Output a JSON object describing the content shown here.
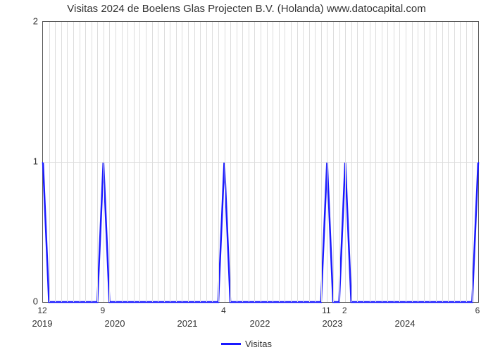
{
  "chart": {
    "type": "line",
    "title": "Visitas 2024 de Boelens Glas Projecten B.V. (Holanda) www.datocapital.com",
    "title_fontsize": 15,
    "background_color": "#ffffff",
    "plot_border_color": "#555555",
    "grid_color": "#dddddd",
    "line_color": "#1a1aff",
    "line_width": 2.5,
    "x_domain_min": 0,
    "x_domain_max": 72,
    "ylim_min": 0,
    "ylim_max": 2,
    "yticks": [
      0,
      1,
      2
    ],
    "x_major_ticks": [
      {
        "x": 0,
        "label": "2019"
      },
      {
        "x": 12,
        "label": "2020"
      },
      {
        "x": 24,
        "label": "2021"
      },
      {
        "x": 36,
        "label": "2022"
      },
      {
        "x": 48,
        "label": "2023"
      },
      {
        "x": 60,
        "label": "2024"
      }
    ],
    "x_minor_step": 1,
    "peaks": [
      {
        "x": 0,
        "label": "12"
      },
      {
        "x": 10,
        "label": "9"
      },
      {
        "x": 30,
        "label": "4"
      },
      {
        "x": 47,
        "label": "11"
      },
      {
        "x": 50,
        "label": "2"
      },
      {
        "x": 72,
        "label": "6"
      }
    ],
    "series": [
      {
        "x": 0,
        "y": 1
      },
      {
        "x": 1,
        "y": 0
      },
      {
        "x": 9,
        "y": 0
      },
      {
        "x": 10,
        "y": 1
      },
      {
        "x": 11,
        "y": 0
      },
      {
        "x": 29,
        "y": 0
      },
      {
        "x": 30,
        "y": 1
      },
      {
        "x": 31,
        "y": 0
      },
      {
        "x": 46,
        "y": 0
      },
      {
        "x": 47,
        "y": 1
      },
      {
        "x": 48,
        "y": 0
      },
      {
        "x": 49,
        "y": 0
      },
      {
        "x": 50,
        "y": 1
      },
      {
        "x": 51,
        "y": 0
      },
      {
        "x": 71,
        "y": 0
      },
      {
        "x": 72,
        "y": 1
      }
    ],
    "legend_label": "Visitas"
  }
}
